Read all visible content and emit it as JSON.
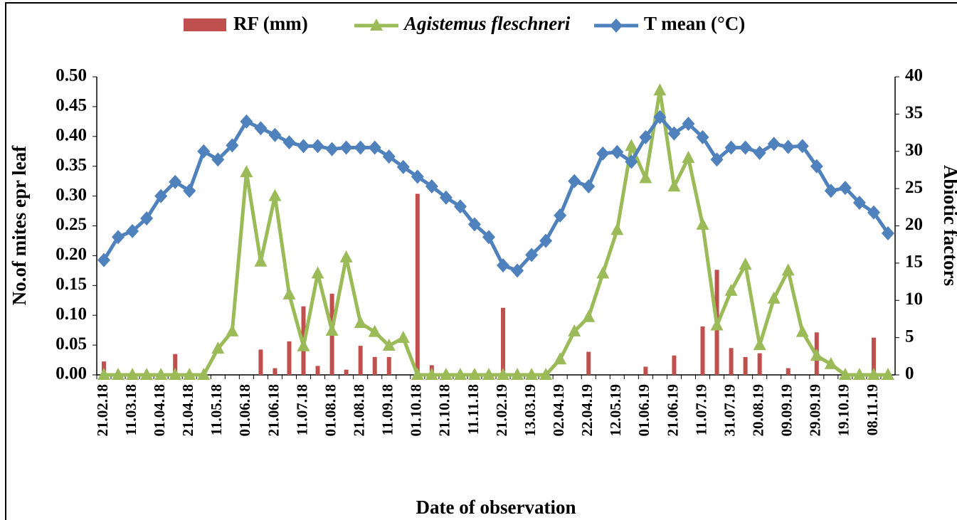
{
  "chart_data": {
    "type": "combo",
    "x_label": "Date of observation",
    "y_label": "No.of mites epr leaf",
    "y2_label": "Abiotic factors",
    "categories": [
      "21.02.18",
      null,
      "11.03.18",
      null,
      "01.04.18",
      null,
      "21.04.18",
      null,
      "11.05.18",
      null,
      "01.06.18",
      null,
      "21.06.18",
      null,
      "11.07.18",
      null,
      "01.08.18",
      null,
      "21.08.18",
      null,
      "11.09.18",
      null,
      "01.10.18",
      null,
      "21.10.18",
      null,
      "11.11.18",
      null,
      "21.02.19",
      null,
      "13.03.19",
      null,
      "02.04.19",
      null,
      "22.04.19",
      null,
      "12.05.19",
      null,
      "01.06.19",
      null,
      "21.06.19",
      null,
      "11.07.19",
      null,
      "31.07.19",
      null,
      "20.08.19",
      null,
      "09.09.19",
      null,
      "29.09.19",
      null,
      "19.10.19",
      null,
      "08.11.19",
      null
    ],
    "series": [
      {
        "name": "RF (mm)",
        "kind": "bar",
        "axis": "y2",
        "color": "#c0504d",
        "values": [
          1.8,
          0,
          0,
          0,
          0,
          2.8,
          0,
          0,
          0,
          0,
          0,
          3.4,
          0.9,
          4.5,
          9.2,
          1.2,
          10.9,
          0.7,
          3.9,
          2.4,
          2.4,
          0,
          24.3,
          1.3,
          0,
          0,
          0,
          0,
          9,
          0,
          0,
          0,
          0,
          0,
          3.1,
          0,
          0,
          0,
          1.1,
          0,
          2.6,
          0,
          6.5,
          14.1,
          3.6,
          2.4,
          2.9,
          0,
          0.9,
          0,
          5.7,
          0,
          0,
          0,
          5,
          0
        ]
      },
      {
        "name": "Agistemus fleschneri",
        "kind": "line",
        "marker": "triangle",
        "color": "#9bbb59",
        "values": [
          0,
          0,
          0,
          0,
          0,
          0,
          0,
          0,
          0.044,
          0.073,
          0.34,
          0.19,
          0.3,
          0.135,
          0.048,
          0.17,
          0.074,
          0.197,
          0.087,
          0.072,
          0.049,
          0.062,
          0,
          0,
          0,
          0,
          0,
          0,
          0,
          0,
          0,
          0,
          0.026,
          0.073,
          0.097,
          0.17,
          0.243,
          0.384,
          0.33,
          0.477,
          0.316,
          0.364,
          0.252,
          0.083,
          0.141,
          0.185,
          0.05,
          0.128,
          0.175,
          0.072,
          0.032,
          0.018,
          0,
          0,
          0,
          0
        ]
      },
      {
        "name": "T mean (°C)",
        "kind": "line",
        "marker": "diamond",
        "axis": "y2",
        "color": "#4f81bd",
        "values": [
          15.4,
          18.5,
          19.3,
          21,
          24,
          25.9,
          24.7,
          30,
          28.9,
          30.8,
          34,
          33.1,
          32.2,
          31.2,
          30.7,
          30.7,
          30.3,
          30.5,
          30.5,
          30.5,
          29.3,
          27.9,
          26.6,
          25.3,
          23.8,
          22.6,
          20.2,
          18.5,
          14.7,
          14,
          16.1,
          18,
          21.4,
          26,
          25.3,
          29.7,
          29.9,
          28.6,
          31.9,
          34.6,
          32.4,
          33.7,
          31.9,
          28.9,
          30.5,
          30.5,
          29.8,
          31,
          30.6,
          30.7,
          28,
          24.7,
          25.1,
          23.1,
          21.8,
          19
        ]
      }
    ],
    "ylim": [
      0,
      0.5
    ],
    "yticks": [
      {
        "value": 0,
        "label": "0.00"
      },
      {
        "value": 0.05,
        "label": "0.05"
      },
      {
        "value": 0.1,
        "label": "0.10"
      },
      {
        "value": 0.15,
        "label": "0.15"
      },
      {
        "value": 0.2,
        "label": "0.20"
      },
      {
        "value": 0.25,
        "label": "0.25"
      },
      {
        "value": 0.3,
        "label": "0.30"
      },
      {
        "value": 0.35,
        "label": "0.35"
      },
      {
        "value": 0.4,
        "label": "0.40"
      },
      {
        "value": 0.45,
        "label": "0.45"
      },
      {
        "value": 0.5,
        "label": "0.50"
      }
    ],
    "y2lim": [
      0,
      40
    ],
    "y2ticks": [
      0,
      5,
      10,
      15,
      20,
      25,
      30,
      35,
      40
    ],
    "legend": "top"
  }
}
